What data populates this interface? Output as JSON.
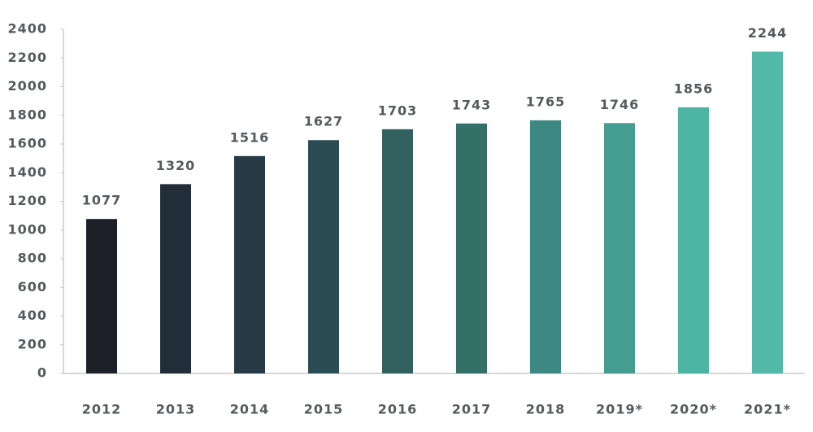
{
  "chart_data": {
    "type": "bar",
    "categories": [
      "2012",
      "2013",
      "2014",
      "2015",
      "2016",
      "2017",
      "2018",
      "2019*",
      "2020*",
      "2021*"
    ],
    "values": [
      1077,
      1320,
      1516,
      1627,
      1703,
      1743,
      1765,
      1746,
      1856,
      2244
    ],
    "colors": [
      "#1e2029",
      "#222d3a",
      "#263b46",
      "#2c4c54",
      "#32605f",
      "#357068",
      "#3d8882",
      "#459d92",
      "#4db3a3",
      "#52b9a9"
    ],
    "ylim": [
      0,
      2400
    ],
    "yticks": [
      0,
      200,
      400,
      600,
      800,
      1000,
      1200,
      1400,
      1600,
      1800,
      2000,
      2200,
      2400
    ],
    "grid": false
  }
}
